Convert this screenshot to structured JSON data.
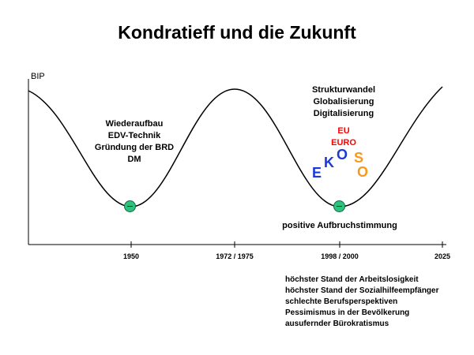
{
  "title": "Kondratieff und die Zukunft",
  "y_axis_label": "BIP",
  "x_ticks": [
    "1950",
    "1972 / 1975",
    "1998 / 2000",
    "2025"
  ],
  "annotations": {
    "first_trough": [
      "Wiederaufbau",
      "EDV-Technik",
      "Gründung der BRD",
      "DM"
    ],
    "second_trough_top": [
      "Strukturwandel",
      "Globalisierung",
      "Digitalisierung"
    ],
    "eu_lines": [
      "EU",
      "EURO"
    ],
    "ekoso_letters": [
      "E",
      "K",
      "O",
      "S",
      "O"
    ],
    "second_trough_caption": "positive Aufbruchstimmung",
    "problems": [
      "höchster Stand der  Arbeitslosigkeit",
      "höchster Stand der Sozialhilfeempfänger",
      "schlechte Berufsperspektiven",
      "Pessimismus in der Bevölkerung",
      "ausufernder Bürokratismus"
    ]
  },
  "colors": {
    "curve": "#000000",
    "marker": "#2ec27e",
    "eu_text": "#ff0000",
    "ekoso_blue": "#1a3ad6",
    "ekoso_orange": "#f59a1c"
  }
}
